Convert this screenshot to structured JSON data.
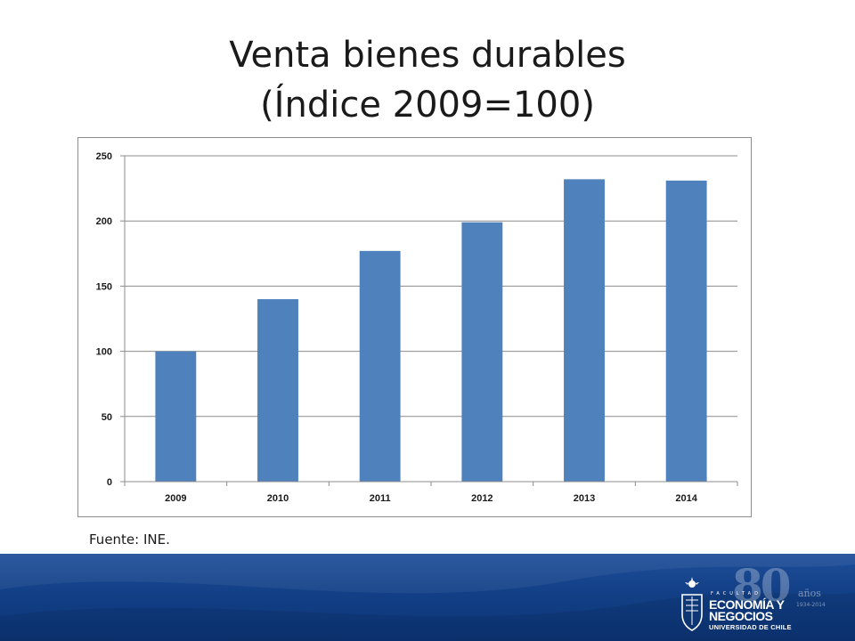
{
  "slide": {
    "title_line1": "Venta bienes durables",
    "title_line2": "(Índice 2009=100)",
    "source": "Fuente: INE."
  },
  "chart_data": {
    "type": "bar",
    "title": "",
    "xlabel": "",
    "ylabel": "",
    "categories": [
      "2009",
      "2010",
      "2011",
      "2012",
      "2013",
      "2014"
    ],
    "values": [
      100,
      140,
      177,
      199,
      232,
      231
    ],
    "ylim": [
      0,
      250
    ],
    "yticks": [
      0,
      50,
      100,
      150,
      200,
      250
    ],
    "grid": true,
    "legend": "none",
    "bar_color": "#4f81bd",
    "grid_color": "#8c8c8c"
  },
  "logo": {
    "facultad": "FACULTAD",
    "line1": "ECONOMÍA Y",
    "line2": "NEGOCIOS",
    "line3": "UNIVERSIDAD DE CHILE",
    "anniversary": "80",
    "anos": "años",
    "years": "1934-2014"
  },
  "colors": {
    "footer_band": "#123f86",
    "title_text": "#1a1a1a"
  }
}
